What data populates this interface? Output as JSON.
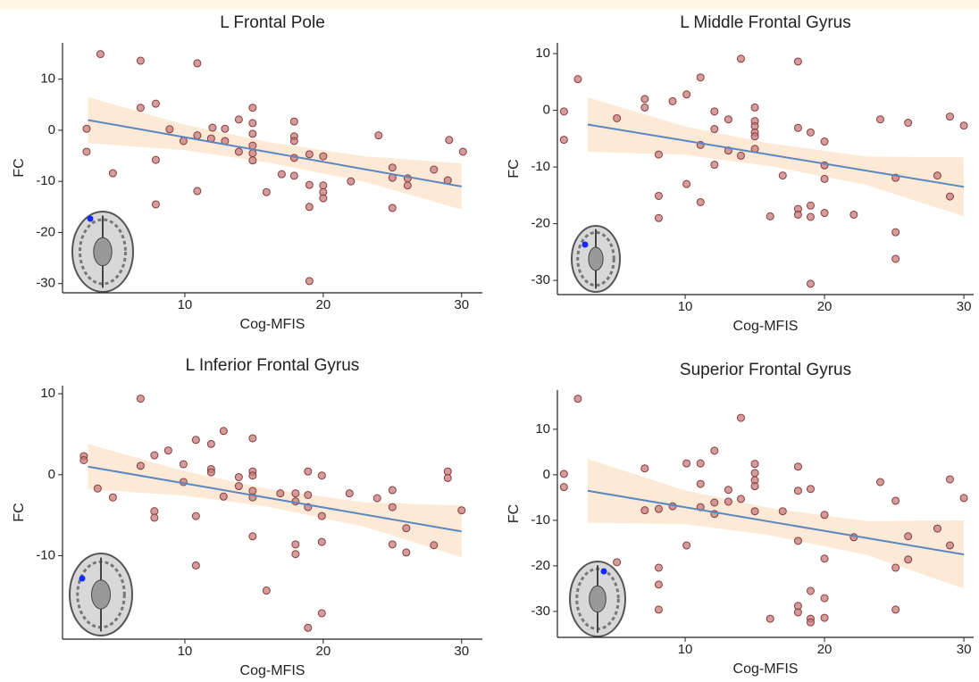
{
  "chart_data": [
    {
      "type": "scatter",
      "title": "L Frontal Pole",
      "xlabel": "Cog-MFIS",
      "ylabel": "FC",
      "x": [
        3.9,
        6.8,
        10.9,
        2.9,
        2.9,
        4.8,
        6.8,
        7.9,
        7.9,
        7.9,
        8.9,
        9.9,
        10.9,
        10.9,
        11.9,
        12,
        12.9,
        12.9,
        13.9,
        13.9,
        14.9,
        14.9,
        14.9,
        14.9,
        14.9,
        14.9,
        15.9,
        17,
        17.9,
        17.9,
        17.9,
        17.9,
        17.9,
        19,
        19,
        19,
        19,
        20,
        20,
        20,
        20,
        22,
        24,
        25,
        25,
        25,
        26.1,
        26.1,
        28,
        29,
        29.1,
        30.1
      ],
      "values": [
        14.9,
        13.6,
        13.1,
        0.3,
        -4.2,
        -8.4,
        4.4,
        5.2,
        -5.8,
        -14.5,
        0.2,
        -2.1,
        -1,
        -11.9,
        -1.6,
        0.5,
        0.3,
        -2.1,
        2.1,
        -4.2,
        4.4,
        1.4,
        -0.7,
        -3,
        -4.5,
        -5.9,
        -12.1,
        -8.6,
        1.7,
        -1.2,
        -2.1,
        -5.4,
        -8.9,
        -15,
        -4.7,
        -10.7,
        -29.5,
        -5.1,
        -10.8,
        -12.1,
        -13.3,
        -10,
        -1,
        -7.3,
        -9.3,
        -15.2,
        -9.4,
        -10.8,
        -7.7,
        -9.8,
        -1.9,
        -4.2
      ],
      "color": "#c47c7c",
      "fit": {
        "x": [
          3,
          30
        ],
        "y": [
          2,
          -11
        ]
      },
      "fit_color": "#5b86c0",
      "band": {
        "x": [
          3,
          10,
          16,
          23,
          30
        ],
        "lower": [
          -2.5,
          -3.9,
          -6.3,
          -10.1,
          -15.5
        ],
        "upper": [
          6.5,
          1.1,
          -2.3,
          -5.1,
          -6.5
        ]
      },
      "band_color": "#fbe6cf",
      "xlim": [
        1.16,
        31.5
      ],
      "ylim": [
        -31.8,
        17.1
      ],
      "xticks": [
        10,
        20,
        30
      ],
      "yticks": [
        -30,
        -20,
        -10,
        0,
        10
      ]
    },
    {
      "type": "scatter",
      "title": "L Middle Frontal Gyrus",
      "xlabel": "Cog-MFIS",
      "ylabel": "FC",
      "x": [
        1.3,
        1.3,
        2.3,
        5.1,
        7.1,
        7.1,
        8.1,
        8.1,
        8.1,
        9.1,
        10.1,
        10.1,
        11.1,
        11.1,
        11.1,
        12.1,
        12.1,
        12.1,
        13.1,
        13.1,
        14,
        14,
        15,
        15,
        15,
        15,
        15,
        15,
        16.1,
        17,
        18.1,
        18.1,
        18.1,
        18.1,
        19,
        19,
        19,
        19,
        20,
        20,
        20,
        20,
        22.1,
        24,
        25.1,
        25.1,
        25.1,
        26,
        28.1,
        29,
        29,
        30
      ],
      "values": [
        -0.2,
        -5.2,
        5.5,
        -1.4,
        2,
        0.5,
        -7.8,
        -15.1,
        -19,
        1.6,
        2.8,
        -13,
        5.8,
        -6.1,
        -16.2,
        -0.2,
        -3.3,
        -9.6,
        -1.6,
        -7.1,
        9.1,
        -8,
        0.5,
        -1.9,
        -2.8,
        -3.9,
        -4.6,
        -6.8,
        -18.7,
        -11.5,
        8.6,
        -3.1,
        -17.4,
        -18.4,
        -3.9,
        -16.8,
        -18.8,
        -30.6,
        -5.5,
        -9.7,
        -12.1,
        -18.1,
        -18.4,
        -1.6,
        -11.9,
        -21.5,
        -26.2,
        -2.2,
        -11.5,
        -1.1,
        -15.2,
        -2.7
      ],
      "color": "#c47c7c",
      "fit": {
        "x": [
          3,
          30
        ],
        "y": [
          -2.5,
          -13.5
        ]
      },
      "fit_color": "#5b86c0",
      "band": {
        "x": [
          3,
          10,
          16,
          23,
          30
        ],
        "lower": [
          -7.3,
          -7.85,
          -9.8,
          -13.15,
          -18.7
        ],
        "upper": [
          2.3,
          -2.85,
          -5.8,
          -8.15,
          -8.3
        ]
      },
      "band_color": "#fbe6cf",
      "xlim": [
        0.83,
        30.7
      ],
      "ylim": [
        -32.5,
        11.9
      ],
      "xticks": [
        10,
        20,
        30
      ],
      "yticks": [
        -30,
        -20,
        -10,
        0,
        10
      ]
    },
    {
      "type": "scatter",
      "title": "L Inferior Frontal Gyrus",
      "xlabel": "Cog-MFIS",
      "ylabel": "FC",
      "x": [
        2.7,
        2.7,
        3.7,
        4.8,
        6.8,
        6.8,
        7.8,
        7.8,
        7.8,
        8.8,
        9.9,
        9.9,
        10.8,
        10.8,
        10.8,
        11.9,
        11.9,
        11.9,
        12.8,
        12.8,
        13.9,
        13.9,
        14.9,
        14.9,
        14.9,
        14.9,
        14.9,
        14.9,
        15.9,
        16.9,
        18,
        18,
        18,
        18,
        18.9,
        18.9,
        18.9,
        18.9,
        19.9,
        19.9,
        19.9,
        19.9,
        21.9,
        23.9,
        25,
        25,
        25,
        26,
        26,
        28,
        29,
        29,
        30
      ],
      "values": [
        2.3,
        1.8,
        -1.7,
        -2.8,
        9.4,
        1.1,
        2.4,
        -4.5,
        -5.3,
        3,
        1.3,
        -0.9,
        4.3,
        -5.1,
        -11.2,
        0.7,
        0.3,
        3.8,
        5.4,
        -2.7,
        -0.3,
        -1.4,
        4.5,
        0.4,
        -0.1,
        -2,
        -2.8,
        -7.6,
        -14.3,
        -2.3,
        -3.3,
        -8.6,
        -9.8,
        -2.3,
        0.4,
        -2.5,
        -4,
        -18.9,
        -0.1,
        -5.1,
        -8.3,
        -17.1,
        -2.3,
        -2.9,
        -1.9,
        -4,
        -8.6,
        -6.6,
        -9.6,
        -8.7,
        0.4,
        -0.4,
        -4.4
      ],
      "color": "#c47c7c",
      "fit": {
        "x": [
          3,
          30
        ],
        "y": [
          1,
          -7
        ]
      },
      "fit_color": "#5b86c0",
      "band": {
        "x": [
          3,
          10,
          16,
          23,
          30
        ],
        "lower": [
          -1.8,
          -2.57,
          -3.95,
          -6.43,
          -10.2
        ],
        "upper": [
          3.8,
          0.43,
          -1.75,
          -3.43,
          -3.8
        ]
      },
      "band_color": "#fbe6cf",
      "xlim": [
        1.16,
        31.5
      ],
      "ylim": [
        -20.3,
        11
      ],
      "xticks": [
        10,
        20,
        30
      ],
      "yticks": [
        -10,
        0,
        10
      ]
    },
    {
      "type": "scatter",
      "title": "Superior Frontal Gyrus",
      "xlabel": "Cog-MFIS",
      "ylabel": "FC",
      "x": [
        2.3,
        1.3,
        1.3,
        5.1,
        7.1,
        7.1,
        8.1,
        8.1,
        8.1,
        8.1,
        9.1,
        10.1,
        10.1,
        11.1,
        11.1,
        11.1,
        12.1,
        12.1,
        12.1,
        13.1,
        13.1,
        14,
        14,
        15,
        15,
        15,
        15,
        15,
        16.1,
        17,
        18.1,
        18.1,
        18.1,
        18.1,
        18.1,
        19,
        19,
        19,
        19,
        20,
        20,
        20,
        20,
        22.1,
        24,
        25.1,
        25.1,
        25.1,
        26,
        26,
        28.1,
        29,
        29,
        30
      ],
      "values": [
        16.7,
        0.2,
        -2.7,
        -19.2,
        1.4,
        -7.8,
        -7.5,
        -20.4,
        -24.1,
        -29.6,
        -6.9,
        2.5,
        -15.5,
        2.5,
        -2,
        -7.1,
        5.3,
        -6.1,
        -8.6,
        -3.3,
        -5.9,
        12.5,
        -5.3,
        2.4,
        0.4,
        -1.2,
        -2.5,
        -8,
        -31.6,
        -8,
        1.8,
        -3.5,
        -14.5,
        -28.8,
        -30.2,
        -3.1,
        -25.5,
        -31.6,
        -32.4,
        -8.8,
        -18.4,
        -27.1,
        -31.4,
        -13.7,
        -1.6,
        -5.7,
        -20.4,
        -29.6,
        -13.5,
        -18.6,
        -11.8,
        -1,
        -15.5,
        -5.1
      ],
      "color": "#c47c7c",
      "fit": {
        "x": [
          3,
          30
        ],
        "y": [
          -3.5,
          -17.5
        ]
      },
      "fit_color": "#5b86c0",
      "band": {
        "x": [
          3,
          10,
          16,
          23,
          30
        ],
        "lower": [
          -10.5,
          -10.83,
          -13.24,
          -17.57,
          -25
        ],
        "upper": [
          3.5,
          -3.43,
          -7.24,
          -10.17,
          -10
        ]
      },
      "band_color": "#fbe6cf",
      "xlim": [
        0.83,
        30.7
      ],
      "ylim": [
        -35.7,
        18.6
      ],
      "xticks": [
        10,
        20,
        30
      ],
      "yticks": [
        -30,
        -20,
        -10,
        0,
        10
      ]
    }
  ]
}
